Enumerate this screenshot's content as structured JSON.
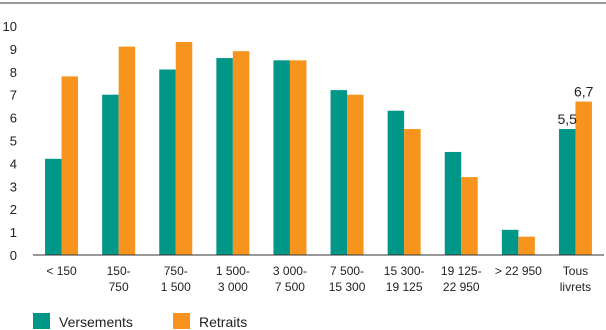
{
  "chart_data": {
    "type": "bar",
    "categories": [
      [
        "< 150"
      ],
      [
        "150-",
        "750"
      ],
      [
        "750-",
        "1 500"
      ],
      [
        "1 500-",
        "3 000"
      ],
      [
        "3 000-",
        "7 500"
      ],
      [
        "7 500-",
        "15 300"
      ],
      [
        "15 300-",
        "19 125"
      ],
      [
        "19 125-",
        "22 950"
      ],
      [
        "> 22 950"
      ],
      [
        "Tous",
        "livrets"
      ]
    ],
    "series": [
      {
        "name": "Versements",
        "color": "#009688",
        "values": [
          4.2,
          7.0,
          8.1,
          8.6,
          8.5,
          7.2,
          6.3,
          4.5,
          1.1,
          5.5
        ]
      },
      {
        "name": "Retraits",
        "color": "#F7941D",
        "values": [
          7.8,
          9.1,
          9.3,
          8.9,
          8.5,
          7.0,
          5.5,
          3.4,
          0.8,
          6.7
        ]
      }
    ],
    "data_labels": [
      {
        "series": 0,
        "index": 9,
        "text": "5,5"
      },
      {
        "series": 1,
        "index": 9,
        "text": "6,7"
      }
    ],
    "yticks": [
      "0",
      "1",
      "2",
      "3",
      "4",
      "5",
      "6",
      "7",
      "8",
      "9",
      "10"
    ],
    "ylim": [
      0,
      10
    ],
    "grid": false,
    "legend_position": "bottom-left"
  }
}
